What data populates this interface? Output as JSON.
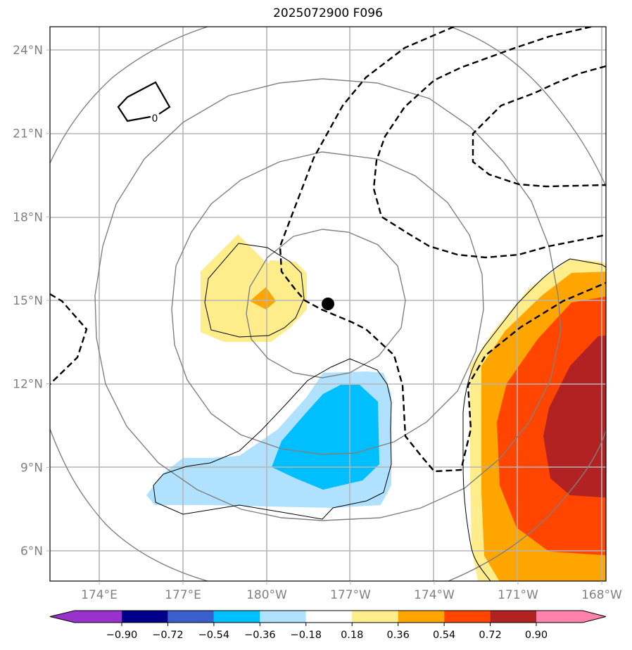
{
  "title": "2025072900 F096",
  "map": {
    "lon_range": [
      171.5,
      191.5
    ],
    "lat_range": [
      5,
      25
    ],
    "lon_ticks": [
      {
        "value": 174,
        "label": "174°E"
      },
      {
        "value": 177,
        "label": "177°E"
      },
      {
        "value": 180,
        "label": "180°W"
      },
      {
        "value": 183,
        "label": "177°W"
      },
      {
        "value": 186,
        "label": "174°W"
      },
      {
        "value": 189,
        "label": "171°W"
      },
      {
        "value": 192,
        "label": "168°W"
      }
    ],
    "lat_ticks": [
      {
        "value": 24,
        "label": "24°N"
      },
      {
        "value": 21,
        "label": "21°N"
      },
      {
        "value": 18,
        "label": "18°N"
      },
      {
        "value": 15,
        "label": "15°N"
      },
      {
        "value": 12,
        "label": "12°N"
      },
      {
        "value": 9,
        "label": "9°N"
      },
      {
        "value": 6,
        "label": "6°N"
      }
    ],
    "storm_center": {
      "lon": 182.2,
      "lat": 14.9
    },
    "zero_contour_label": "0"
  },
  "colorbar": {
    "levels": [
      "−0.90",
      "−0.72",
      "−0.54",
      "−0.36",
      "−0.18",
      "0.18",
      "0.36",
      "0.54",
      "0.72",
      "0.90"
    ],
    "colors": [
      "#9932cc",
      "#00008b",
      "#3a5fcd",
      "#00bfff",
      "#b0e2ff",
      "#ffffff",
      "#ffec8b",
      "#ffa500",
      "#ff4500",
      "#b22222",
      "#ff82ab"
    ],
    "extend": "both"
  }
}
